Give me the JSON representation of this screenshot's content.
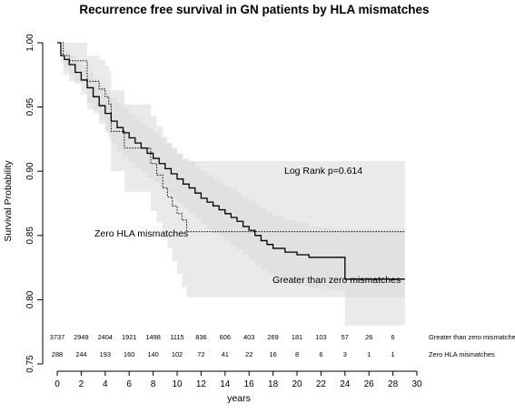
{
  "chart_data": {
    "type": "line",
    "title": "Recurrence free survival in GN patients by HLA mismatches",
    "xlabel": "years",
    "ylabel": "Survival Probability",
    "xlim": [
      0,
      30
    ],
    "ylim": [
      0.75,
      1.0
    ],
    "xticks": [
      "0",
      "2",
      "4",
      "6",
      "8",
      "10",
      "12",
      "14",
      "16",
      "18",
      "20",
      "22",
      "24",
      "26",
      "28",
      "30"
    ],
    "yticks": [
      "0.75",
      "0.80",
      "0.85",
      "0.90",
      "0.95",
      "1.00"
    ],
    "grid": false,
    "annotations": {
      "log_rank": "Log Rank p=0.614",
      "zero_label": "Zero HLA mismatches",
      "greater_label": "Greater than zero mismatches"
    },
    "series": [
      {
        "name": "Greater than zero mismatches",
        "style": "solid",
        "x": [
          0,
          0.3,
          0.6,
          1,
          1.5,
          2,
          2.5,
          3,
          3.5,
          4,
          4.5,
          5,
          5.5,
          6,
          6.5,
          7,
          7.5,
          8,
          8.5,
          9,
          9.5,
          10,
          10.5,
          11,
          11.5,
          12,
          12.5,
          13,
          13.5,
          14,
          14.5,
          15,
          15.5,
          16,
          16.5,
          17,
          17.5,
          18,
          19,
          20,
          21,
          22,
          23,
          24,
          25,
          26,
          27,
          28,
          29
        ],
        "y": [
          1.0,
          0.99,
          0.987,
          0.983,
          0.977,
          0.971,
          0.965,
          0.958,
          0.951,
          0.945,
          0.939,
          0.934,
          0.93,
          0.926,
          0.922,
          0.918,
          0.914,
          0.91,
          0.906,
          0.902,
          0.898,
          0.894,
          0.89,
          0.887,
          0.883,
          0.879,
          0.876,
          0.873,
          0.87,
          0.867,
          0.864,
          0.861,
          0.857,
          0.854,
          0.85,
          0.846,
          0.843,
          0.84,
          0.837,
          0.835,
          0.833,
          0.833,
          0.833,
          0.816,
          0.816,
          0.816,
          0.816,
          0.816,
          0.816
        ],
        "ci_upper": [
          1.0,
          0.995,
          0.993,
          0.99,
          0.986,
          0.982,
          0.977,
          0.972,
          0.967,
          0.962,
          0.957,
          0.953,
          0.949,
          0.945,
          0.941,
          0.937,
          0.934,
          0.93,
          0.926,
          0.922,
          0.918,
          0.914,
          0.91,
          0.907,
          0.903,
          0.9,
          0.897,
          0.894,
          0.891,
          0.888,
          0.886,
          0.883,
          0.88,
          0.877,
          0.874,
          0.871,
          0.868,
          0.865,
          0.862,
          0.86,
          0.857,
          0.856,
          0.855,
          0.855,
          0.855,
          0.855,
          0.855,
          0.855,
          0.855
        ],
        "ci_lower": [
          1.0,
          0.985,
          0.98,
          0.975,
          0.968,
          0.96,
          0.953,
          0.945,
          0.937,
          0.93,
          0.922,
          0.916,
          0.911,
          0.907,
          0.903,
          0.899,
          0.895,
          0.891,
          0.887,
          0.883,
          0.879,
          0.875,
          0.871,
          0.867,
          0.863,
          0.859,
          0.855,
          0.852,
          0.849,
          0.846,
          0.842,
          0.839,
          0.835,
          0.831,
          0.827,
          0.823,
          0.82,
          0.817,
          0.814,
          0.811,
          0.809,
          0.808,
          0.807,
          0.78,
          0.78,
          0.78,
          0.78,
          0.78,
          0.78
        ]
      },
      {
        "name": "Zero HLA mismatches",
        "style": "dotted",
        "x": [
          0,
          0.5,
          1.0,
          2.0,
          2.5,
          3.5,
          4.0,
          4.3,
          4.5,
          5.3,
          5.6,
          7.3,
          7.8,
          8.3,
          8.8,
          9.2,
          9.6,
          10.0,
          10.4,
          10.8,
          11.5,
          29
        ],
        "y": [
          1.0,
          0.99,
          0.986,
          0.986,
          0.97,
          0.964,
          0.958,
          0.952,
          0.931,
          0.931,
          0.918,
          0.918,
          0.906,
          0.897,
          0.887,
          0.88,
          0.873,
          0.867,
          0.862,
          0.853,
          0.853,
          0.853
        ],
        "ci_upper": [
          1.0,
          1.0,
          1.0,
          1.0,
          0.99,
          0.987,
          0.982,
          0.978,
          0.963,
          0.963,
          0.952,
          0.952,
          0.943,
          0.935,
          0.927,
          0.922,
          0.917,
          0.913,
          0.909,
          0.908,
          0.908,
          0.908
        ],
        "ci_lower": [
          1.0,
          0.975,
          0.97,
          0.97,
          0.948,
          0.94,
          0.932,
          0.925,
          0.9,
          0.9,
          0.884,
          0.884,
          0.869,
          0.86,
          0.848,
          0.84,
          0.83,
          0.82,
          0.81,
          0.802,
          0.802,
          0.802
        ]
      }
    ],
    "risk_table": {
      "times": [
        0,
        2,
        4,
        6,
        8,
        10,
        12,
        14,
        16,
        18,
        20,
        22,
        24,
        26,
        28
      ],
      "rows": [
        {
          "label": "Greater than zero mismatches",
          "counts": [
            "3737",
            "2949",
            "2404",
            "1921",
            "1498",
            "1115",
            "836",
            "606",
            "403",
            "269",
            "181",
            "103",
            "57",
            "26",
            "6"
          ]
        },
        {
          "label": "Zero HLA mismatches",
          "counts": [
            "288",
            "244",
            "193",
            "160",
            "140",
            "102",
            "72",
            "41",
            "22",
            "16",
            "8",
            "6",
            "3",
            "1",
            "1"
          ]
        }
      ]
    }
  }
}
